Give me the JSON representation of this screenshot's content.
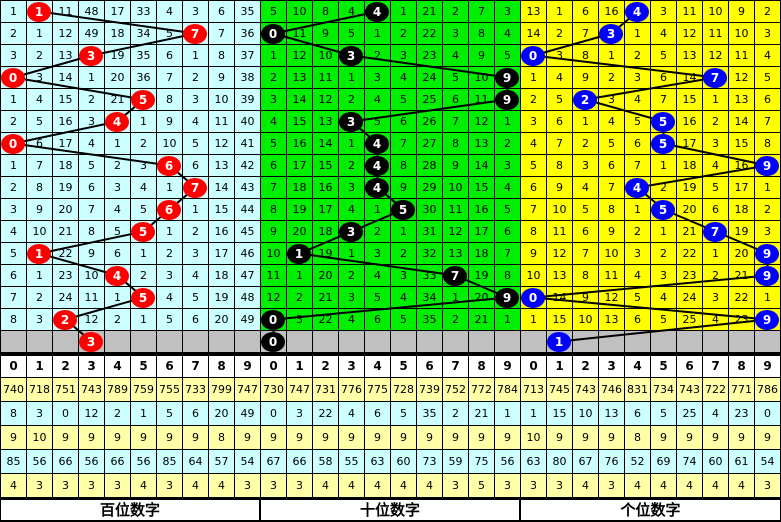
{
  "colors": {
    "hundreds_bg": "#CCFFFF",
    "hundreds_ball": "#FF0000",
    "tens_bg": "#00EE00",
    "tens_ball": "#000000",
    "units_bg": "#FFFF00",
    "units_ball": "#0000FF",
    "missing_row": "#C0C0C0",
    "stat_yellow": "#FFFFA8",
    "stat_cyan": "#CCFFFF"
  },
  "panels": [
    {
      "id": "hundreds",
      "title": "百位数字",
      "rows": [
        {
          "cells": [
            1,
            1,
            11,
            48,
            17,
            33,
            4,
            3,
            6,
            35
          ],
          "ball": 1
        },
        {
          "cells": [
            2,
            1,
            12,
            49,
            18,
            34,
            5,
            7,
            7,
            36
          ],
          "ball": 7
        },
        {
          "cells": [
            3,
            2,
            13,
            3,
            19,
            35,
            6,
            1,
            8,
            37
          ],
          "ball": 3
        },
        {
          "cells": [
            0,
            3,
            14,
            1,
            20,
            36,
            7,
            2,
            9,
            38
          ],
          "ball": 0
        },
        {
          "cells": [
            1,
            4,
            15,
            2,
            21,
            5,
            8,
            3,
            10,
            39
          ],
          "ball": 5
        },
        {
          "cells": [
            2,
            5,
            16,
            3,
            4,
            1,
            9,
            4,
            11,
            40
          ],
          "ball": 4
        },
        {
          "cells": [
            0,
            6,
            17,
            4,
            1,
            2,
            10,
            5,
            12,
            41
          ],
          "ball": 0
        },
        {
          "cells": [
            1,
            7,
            18,
            5,
            2,
            3,
            6,
            6,
            13,
            42
          ],
          "ball": 6
        },
        {
          "cells": [
            2,
            8,
            19,
            6,
            3,
            4,
            1,
            7,
            14,
            43
          ],
          "ball": 7
        },
        {
          "cells": [
            3,
            9,
            20,
            7,
            4,
            5,
            6,
            1,
            15,
            44
          ],
          "ball": 6
        },
        {
          "cells": [
            4,
            10,
            21,
            8,
            5,
            5,
            1,
            2,
            16,
            45
          ],
          "ball": 5
        },
        {
          "cells": [
            5,
            1,
            22,
            9,
            6,
            1,
            2,
            3,
            17,
            46
          ],
          "ball": 1
        },
        {
          "cells": [
            6,
            1,
            23,
            10,
            4,
            2,
            3,
            4,
            18,
            47
          ],
          "ball": 4
        },
        {
          "cells": [
            7,
            2,
            24,
            11,
            1,
            5,
            4,
            5,
            19,
            48
          ],
          "ball": 5
        },
        {
          "cells": [
            8,
            3,
            2,
            12,
            2,
            1,
            5,
            6,
            20,
            49
          ],
          "ball": 2
        }
      ],
      "next_ball": 3,
      "stats": [
        [
          740,
          718,
          751,
          743,
          789,
          759,
          755,
          733,
          799,
          747
        ],
        [
          8,
          3,
          0,
          12,
          2,
          1,
          5,
          6,
          20,
          49
        ],
        [
          9,
          10,
          9,
          9,
          9,
          9,
          9,
          9,
          8,
          9
        ],
        [
          85,
          56,
          66,
          56,
          66,
          56,
          85,
          64,
          57,
          54
        ],
        [
          4,
          3,
          3,
          3,
          3,
          4,
          3,
          4,
          4,
          3
        ]
      ]
    },
    {
      "id": "tens",
      "title": "十位数字",
      "rows": [
        {
          "cells": [
            5,
            10,
            8,
            4,
            4,
            1,
            21,
            2,
            7,
            3
          ],
          "ball": 4
        },
        {
          "cells": [
            0,
            11,
            9,
            5,
            1,
            2,
            22,
            3,
            8,
            4
          ],
          "ball": 0
        },
        {
          "cells": [
            1,
            12,
            10,
            3,
            2,
            3,
            23,
            4,
            9,
            5
          ],
          "ball": 3
        },
        {
          "cells": [
            2,
            13,
            11,
            1,
            3,
            4,
            24,
            5,
            10,
            9
          ],
          "ball": 9
        },
        {
          "cells": [
            3,
            14,
            12,
            2,
            4,
            5,
            25,
            6,
            11,
            9
          ],
          "ball": 9
        },
        {
          "cells": [
            4,
            15,
            13,
            3,
            5,
            6,
            26,
            7,
            12,
            1
          ],
          "ball": 3
        },
        {
          "cells": [
            5,
            16,
            14,
            1,
            4,
            7,
            27,
            8,
            13,
            2
          ],
          "ball": 4
        },
        {
          "cells": [
            6,
            17,
            15,
            2,
            4,
            8,
            28,
            9,
            14,
            3
          ],
          "ball": 4
        },
        {
          "cells": [
            7,
            18,
            16,
            3,
            4,
            9,
            29,
            10,
            15,
            4
          ],
          "ball": 4
        },
        {
          "cells": [
            8,
            19,
            17,
            4,
            1,
            5,
            30,
            11,
            16,
            5
          ],
          "ball": 5
        },
        {
          "cells": [
            9,
            20,
            18,
            3,
            2,
            1,
            31,
            12,
            17,
            6
          ],
          "ball": 3
        },
        {
          "cells": [
            10,
            1,
            19,
            1,
            3,
            2,
            32,
            13,
            18,
            7
          ],
          "ball": 1
        },
        {
          "cells": [
            11,
            1,
            20,
            2,
            4,
            3,
            33,
            7,
            19,
            8
          ],
          "ball": 7
        },
        {
          "cells": [
            12,
            2,
            21,
            3,
            5,
            4,
            34,
            1,
            20,
            9
          ],
          "ball": 9
        },
        {
          "cells": [
            0,
            3,
            22,
            4,
            6,
            5,
            35,
            2,
            21,
            1
          ],
          "ball": 0
        }
      ],
      "next_ball": 0,
      "stats": [
        [
          730,
          747,
          731,
          776,
          775,
          728,
          739,
          752,
          772,
          784
        ],
        [
          0,
          3,
          22,
          4,
          6,
          5,
          35,
          2,
          21,
          1
        ],
        [
          9,
          9,
          9,
          9,
          9,
          9,
          9,
          9,
          9,
          9
        ],
        [
          67,
          66,
          58,
          55,
          63,
          60,
          73,
          59,
          75,
          56
        ],
        [
          3,
          3,
          4,
          4,
          4,
          4,
          4,
          3,
          5,
          3
        ]
      ]
    },
    {
      "id": "units",
      "title": "个位数字",
      "rows": [
        {
          "cells": [
            13,
            1,
            6,
            16,
            4,
            3,
            11,
            10,
            9,
            2
          ],
          "ball": 4
        },
        {
          "cells": [
            14,
            2,
            7,
            3,
            1,
            4,
            12,
            11,
            10,
            3
          ],
          "ball": 3
        },
        {
          "cells": [
            0,
            3,
            8,
            1,
            2,
            5,
            13,
            12,
            11,
            4
          ],
          "ball": 0
        },
        {
          "cells": [
            1,
            4,
            9,
            2,
            3,
            6,
            14,
            7,
            12,
            5
          ],
          "ball": 7
        },
        {
          "cells": [
            2,
            5,
            2,
            3,
            4,
            7,
            15,
            1,
            13,
            6
          ],
          "ball": 2
        },
        {
          "cells": [
            3,
            6,
            1,
            4,
            5,
            5,
            16,
            2,
            14,
            7
          ],
          "ball": 5
        },
        {
          "cells": [
            4,
            7,
            2,
            5,
            6,
            5,
            17,
            3,
            15,
            8
          ],
          "ball": 5
        },
        {
          "cells": [
            5,
            8,
            3,
            6,
            7,
            1,
            18,
            4,
            16,
            9
          ],
          "ball": 9
        },
        {
          "cells": [
            6,
            9,
            4,
            7,
            4,
            2,
            19,
            5,
            17,
            1
          ],
          "ball": 4
        },
        {
          "cells": [
            7,
            10,
            5,
            8,
            1,
            5,
            20,
            6,
            18,
            2
          ],
          "ball": 5
        },
        {
          "cells": [
            8,
            11,
            6,
            9,
            2,
            1,
            21,
            7,
            19,
            3
          ],
          "ball": 7
        },
        {
          "cells": [
            9,
            12,
            7,
            10,
            3,
            2,
            22,
            1,
            20,
            9
          ],
          "ball": 9
        },
        {
          "cells": [
            10,
            13,
            8,
            11,
            4,
            3,
            23,
            2,
            21,
            9
          ],
          "ball": 9
        },
        {
          "cells": [
            0,
            14,
            9,
            12,
            5,
            4,
            24,
            3,
            22,
            1
          ],
          "ball": 0
        },
        {
          "cells": [
            1,
            15,
            10,
            13,
            6,
            5,
            25,
            4,
            23,
            9
          ],
          "ball": 9
        }
      ],
      "next_ball": 1,
      "stats": [
        [
          713,
          745,
          743,
          746,
          831,
          734,
          743,
          722,
          771,
          786
        ],
        [
          1,
          15,
          10,
          13,
          6,
          5,
          25,
          4,
          23,
          0
        ],
        [
          10,
          9,
          9,
          9,
          8,
          9,
          9,
          9,
          9,
          9
        ],
        [
          63,
          80,
          67,
          76,
          52,
          69,
          74,
          60,
          61,
          54
        ],
        [
          3,
          3,
          4,
          3,
          4,
          4,
          4,
          4,
          4,
          3
        ]
      ]
    }
  ],
  "digits": [
    "0",
    "1",
    "2",
    "3",
    "4",
    "5",
    "6",
    "7",
    "8",
    "9"
  ]
}
